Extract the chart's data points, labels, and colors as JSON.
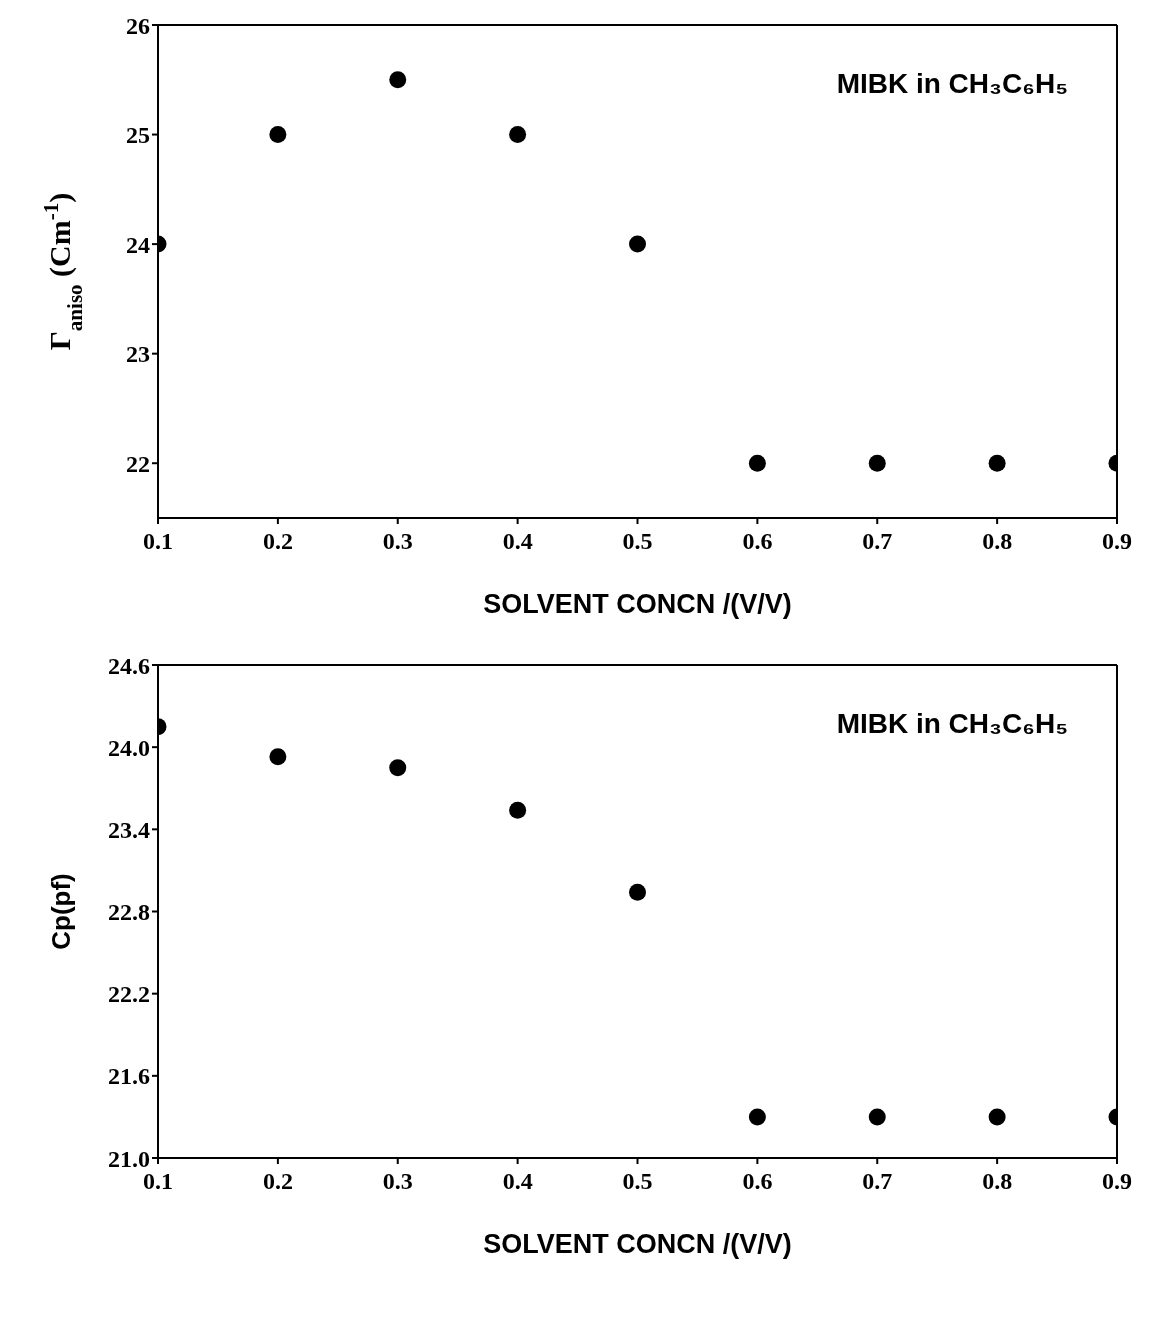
{
  "chart_data": [
    {
      "type": "scatter",
      "xlabel": "SOLVENT CONCN /(V/V)",
      "ylabel": "Γ$_{aniso}$  (Cm$^{-1}$)",
      "annotations": [
        "MIBK in CH₃C₆H₅"
      ],
      "x": [
        0.1,
        0.2,
        0.3,
        0.4,
        0.5,
        0.6,
        0.7,
        0.8,
        0.9
      ],
      "series": [
        {
          "color": "#000000",
          "values": [
            24,
            25,
            25.5,
            25,
            24,
            22,
            22,
            22,
            22
          ]
        }
      ],
      "xlim": [
        0.1,
        0.9
      ],
      "xticks": [
        0.1,
        0.2,
        0.3,
        0.4,
        0.5,
        0.6,
        0.7,
        0.8,
        0.9
      ],
      "ylim": [
        21.5,
        26
      ],
      "yticks": [
        22,
        23,
        24,
        25,
        26
      ],
      "legend": false,
      "marker": "circle"
    },
    {
      "type": "scatter",
      "xlabel": "SOLVENT CONCN /(V/V)",
      "ylabel": "Cp(pf)",
      "annotations": [
        "MIBK in CH₃C₆H₅"
      ],
      "x": [
        0.1,
        0.2,
        0.3,
        0.4,
        0.5,
        0.6,
        0.7,
        0.8,
        0.9
      ],
      "series": [
        {
          "color": "#000000",
          "values": [
            24.15,
            23.93,
            23.85,
            23.54,
            22.94,
            21.3,
            21.3,
            21.3,
            21.3
          ]
        }
      ],
      "xlim": [
        0.1,
        0.9
      ],
      "xticks": [
        0.1,
        0.2,
        0.3,
        0.4,
        0.5,
        0.6,
        0.7,
        0.8,
        0.9
      ],
      "ylim": [
        21,
        24.6
      ],
      "yticks": [
        {
          "value": 21,
          "label": "21.0"
        },
        21.6,
        22.2,
        22.8,
        23.4,
        {
          "value": 24,
          "label": "24.0"
        },
        24.6
      ],
      "legend": false,
      "marker": "circle"
    }
  ]
}
